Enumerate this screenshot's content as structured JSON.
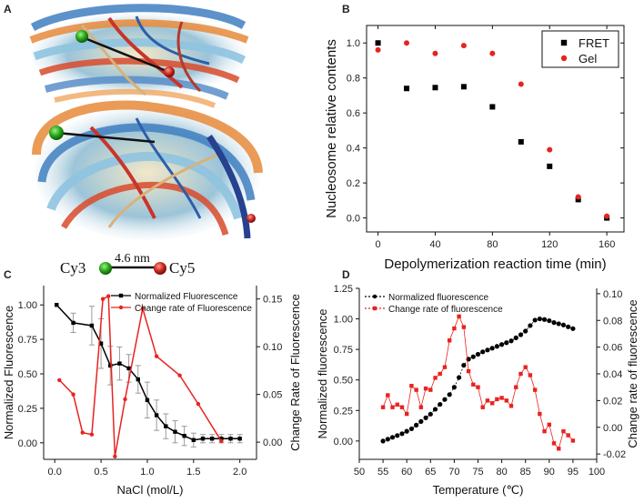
{
  "panels": {
    "a": {
      "letter": "A",
      "label_left": "Cy3",
      "label_right": "Cy5",
      "distance": "4.6 nm",
      "colors": {
        "green": "#2aa81a",
        "red": "#cc2a22"
      }
    }
  },
  "chart_data": [
    {
      "id": "B",
      "letter": "B",
      "type": "scatter",
      "xlabel": "Depolymerization reaction time (min)",
      "ylabel": "Nucleosome relative contents",
      "xlim": [
        -8,
        172
      ],
      "ylim": [
        -0.08,
        1.1
      ],
      "xticks": [
        "0",
        "40",
        "80",
        "120",
        "160"
      ],
      "xtick_values": [
        0,
        40,
        80,
        120,
        160
      ],
      "yticks": [
        "0.0",
        "0.2",
        "0.4",
        "0.6",
        "0.8",
        "1.0"
      ],
      "ytick_values": [
        0.0,
        0.2,
        0.4,
        0.6,
        0.8,
        1.0
      ],
      "legend": [
        {
          "name": "FRET",
          "marker": "square",
          "color": "#000000"
        },
        {
          "name": "Gel",
          "marker": "circle",
          "color": "#e8231f"
        }
      ],
      "series": [
        {
          "name": "FRET",
          "x": [
            0,
            20,
            40,
            60,
            80,
            100,
            120,
            140,
            160
          ],
          "y": [
            1.0,
            0.74,
            0.745,
            0.75,
            0.635,
            0.435,
            0.295,
            0.105,
            0.0
          ]
        },
        {
          "name": "Gel",
          "x": [
            0,
            20,
            40,
            60,
            80,
            100,
            120,
            140,
            160
          ],
          "y": [
            0.96,
            1.0,
            0.94,
            0.985,
            0.94,
            0.765,
            0.39,
            0.12,
            0.01
          ]
        }
      ]
    },
    {
      "id": "C",
      "letter": "C",
      "type": "line",
      "xlabel": "NaCl (mol/L)",
      "ylabel": "Normalized Fluorescence",
      "y2label": "Change Rate of Fluorescence",
      "xlim": [
        -0.12,
        2.18
      ],
      "ylim": [
        -0.12,
        1.14
      ],
      "y2lim": [
        -0.018,
        0.164
      ],
      "xticks": [
        "0.0",
        "0.5",
        "1.0",
        "1.5",
        "2.0"
      ],
      "xtick_values": [
        0.0,
        0.5,
        1.0,
        1.5,
        2.0
      ],
      "yticks": [
        "0.00",
        "0.25",
        "0.50",
        "0.75",
        "1.00"
      ],
      "ytick_values": [
        0.0,
        0.25,
        0.5,
        0.75,
        1.0
      ],
      "y2ticks": [
        "0.00",
        "0.05",
        "0.10",
        "0.15"
      ],
      "y2tick_values": [
        0.0,
        0.05,
        0.1,
        0.15
      ],
      "legend": [
        {
          "name": "Normalized Fluorescence",
          "color": "#000000"
        },
        {
          "name": "Change rate of Fluorescence",
          "color": "#e8231f"
        }
      ],
      "series": [
        {
          "name": "Normalized Fluorescence",
          "axis": "left",
          "marker": "square",
          "color": "#000000",
          "x": [
            0.02,
            0.2,
            0.4,
            0.5,
            0.6,
            0.7,
            0.8,
            0.9,
            1.0,
            1.1,
            1.2,
            1.3,
            1.4,
            1.5,
            1.6,
            1.7,
            1.8,
            1.9,
            2.0
          ],
          "y": [
            1.0,
            0.87,
            0.85,
            0.72,
            0.56,
            0.575,
            0.54,
            0.46,
            0.31,
            0.2,
            0.12,
            0.08,
            0.05,
            0.02,
            0.03,
            0.03,
            0.03,
            0.03,
            0.03
          ],
          "err": [
            0,
            0.07,
            0.14,
            0.18,
            0.14,
            0.12,
            0.1,
            0.1,
            0.13,
            0.11,
            0.09,
            0.08,
            0.07,
            0.05,
            0.03,
            0.03,
            0.03,
            0.03,
            0.03
          ]
        },
        {
          "name": "Change rate of Fluorescence",
          "axis": "right",
          "marker": "circle",
          "color": "#e8231f",
          "x": [
            0.05,
            0.2,
            0.3,
            0.4,
            0.52,
            0.58,
            0.65,
            0.76,
            0.95,
            1.1,
            1.35,
            1.55,
            1.8
          ],
          "y": [
            0.065,
            0.05,
            0.01,
            0.008,
            0.15,
            0.153,
            -0.015,
            0.045,
            0.14,
            0.09,
            0.07,
            0.04,
            0.001
          ]
        }
      ]
    },
    {
      "id": "D",
      "letter": "D",
      "type": "line",
      "xlabel": "Temperature (℃)",
      "ylabel": "Normalized fluorescence",
      "y2label": "Change rate of fluorescence",
      "xlim": [
        50,
        100
      ],
      "ylim": [
        -0.15,
        1.25
      ],
      "y2lim": [
        -0.024,
        0.104
      ],
      "xticks": [
        "50",
        "55",
        "60",
        "65",
        "70",
        "75",
        "80",
        "85",
        "90",
        "95",
        "100"
      ],
      "xtick_values": [
        50,
        55,
        60,
        65,
        70,
        75,
        80,
        85,
        90,
        95,
        100
      ],
      "yticks": [
        "0.00",
        "0.25",
        "0.50",
        "0.75",
        "1.00",
        "1.25"
      ],
      "ytick_values": [
        0.0,
        0.25,
        0.5,
        0.75,
        1.0,
        1.25
      ],
      "y2ticks": [
        "-0.02",
        "0.00",
        "0.02",
        "0.04",
        "0.06",
        "0.08",
        "0.10"
      ],
      "y2tick_values": [
        -0.02,
        0.0,
        0.02,
        0.04,
        0.06,
        0.08,
        0.1
      ],
      "legend": [
        {
          "name": "Normalized fluorescence",
          "color": "#000000"
        },
        {
          "name": "Change rate of fluorescence",
          "color": "#e8231f"
        }
      ],
      "series": [
        {
          "name": "Normalized fluorescence",
          "axis": "left",
          "marker": "circle",
          "color": "#000000",
          "x": [
            55,
            56,
            57,
            58,
            59,
            60,
            61,
            62,
            63,
            64,
            65,
            66,
            67,
            68,
            69,
            70,
            71,
            72,
            73,
            74,
            75,
            76,
            77,
            78,
            79,
            80,
            81,
            82,
            83,
            84,
            85,
            86,
            87,
            88,
            89,
            90,
            91,
            92,
            93,
            94,
            95
          ],
          "y": [
            0.0,
            0.015,
            0.03,
            0.045,
            0.06,
            0.08,
            0.1,
            0.13,
            0.16,
            0.19,
            0.22,
            0.26,
            0.3,
            0.34,
            0.38,
            0.44,
            0.52,
            0.62,
            0.67,
            0.69,
            0.71,
            0.73,
            0.745,
            0.76,
            0.775,
            0.79,
            0.805,
            0.82,
            0.845,
            0.87,
            0.9,
            0.945,
            0.99,
            1.0,
            0.995,
            0.985,
            0.97,
            0.96,
            0.95,
            0.935,
            0.92
          ]
        },
        {
          "name": "Change rate of fluorescence",
          "axis": "right",
          "marker": "square",
          "color": "#e8231f",
          "x": [
            55,
            56,
            57,
            58,
            59,
            60,
            61,
            62,
            63,
            64,
            65,
            66,
            67,
            68,
            69,
            70,
            71,
            72,
            73,
            74,
            75,
            76,
            77,
            78,
            79,
            80,
            81,
            82,
            83,
            84,
            85,
            86,
            87,
            88,
            89,
            90,
            91,
            92,
            93,
            94,
            95
          ],
          "y": [
            0.015,
            0.024,
            0.015,
            0.017,
            0.015,
            0.01,
            0.031,
            0.028,
            0.015,
            0.029,
            0.028,
            0.037,
            0.04,
            0.045,
            0.065,
            0.074,
            0.083,
            0.075,
            0.042,
            0.032,
            0.03,
            0.015,
            0.02,
            0.018,
            0.021,
            0.022,
            0.02,
            0.016,
            0.03,
            0.04,
            0.045,
            0.039,
            0.028,
            0.01,
            -0.003,
            0.002,
            -0.012,
            -0.016,
            -0.003,
            -0.006,
            -0.01
          ]
        }
      ]
    }
  ]
}
